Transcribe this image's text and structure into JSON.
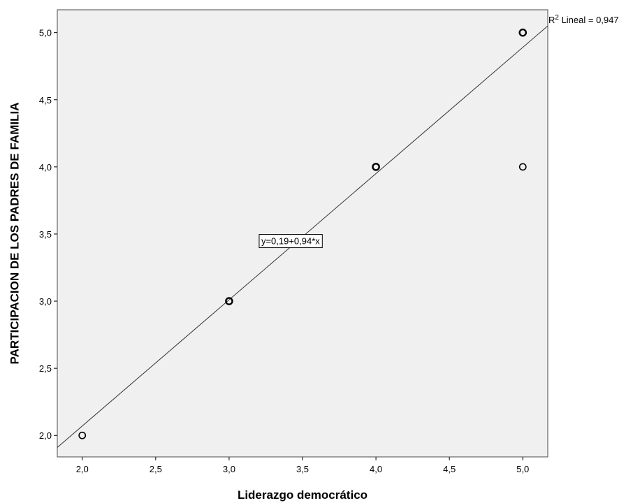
{
  "chart_data": {
    "type": "scatter",
    "title": "",
    "xlabel": "Liderazgo democrático",
    "ylabel": "PARTICIPACION DE LOS PADRES DE FAMILIA",
    "xlim": [
      1.83,
      5.17
    ],
    "ylim": [
      1.84,
      5.17
    ],
    "xticks": [
      2.0,
      2.5,
      3.0,
      3.5,
      4.0,
      4.5,
      5.0
    ],
    "yticks": [
      2.0,
      2.5,
      3.0,
      3.5,
      4.0,
      4.5,
      5.0
    ],
    "xtick_labels": [
      "2,0",
      "2,5",
      "3,0",
      "3,5",
      "4,0",
      "4,5",
      "5,0"
    ],
    "ytick_labels": [
      "2,0",
      "2,5",
      "3,0",
      "3,5",
      "4,0",
      "4,5",
      "5,0"
    ],
    "grid": false,
    "background_color": "#f0f0f0",
    "series": [
      {
        "points": [
          {
            "x": 2.0,
            "y": 2.0,
            "overlap": false
          },
          {
            "x": 3.0,
            "y": 3.0,
            "overlap": true
          },
          {
            "x": 4.0,
            "y": 4.0,
            "overlap": true
          },
          {
            "x": 5.0,
            "y": 5.0,
            "overlap": true
          },
          {
            "x": 5.0,
            "y": 4.0,
            "overlap": false
          }
        ]
      }
    ],
    "fit_line": {
      "intercept": 0.19,
      "slope": 0.94,
      "equation_label": "y=0,19+0,94*x",
      "equation_label_at": {
        "x": 3.2,
        "y": 3.45
      }
    },
    "r2_label": {
      "prefix": "R",
      "superscript": "2",
      "suffix": " Lineal = 0,947"
    }
  }
}
